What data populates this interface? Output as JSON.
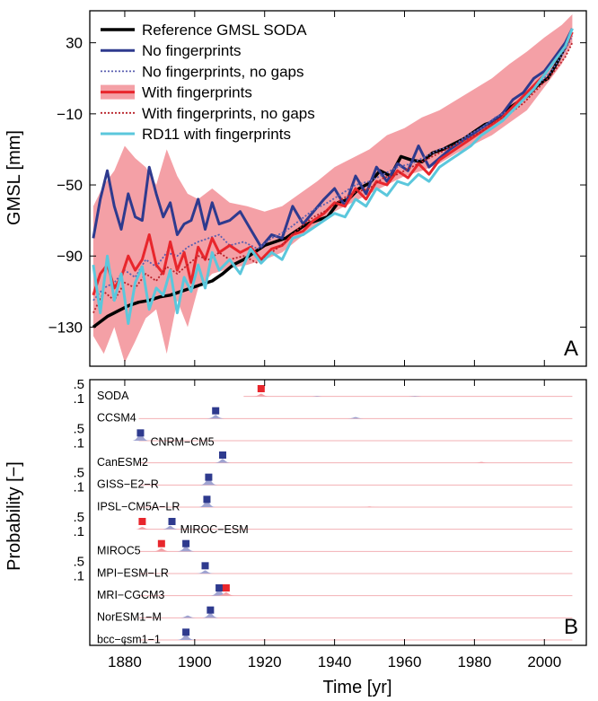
{
  "chart_data": [
    {
      "type": "line",
      "panel_label": "A",
      "xlabel": "",
      "ylabel": "GMSL [mm]",
      "xlim": [
        1870,
        2012
      ],
      "ylim": [
        -152,
        48
      ],
      "yticks": [
        30,
        -10,
        -50,
        -90,
        -130
      ],
      "ytick_labels": [
        "30",
        "−10",
        "−50",
        "−90",
        "−130"
      ],
      "legend_location": "top-left",
      "band": {
        "name": "With fingerprints",
        "color": "#f4a0a6",
        "x": [
          1871,
          1874,
          1877,
          1880,
          1883,
          1886,
          1889,
          1892,
          1895,
          1898,
          1901,
          1905,
          1910,
          1915,
          1920,
          1925,
          1930,
          1935,
          1940,
          1945,
          1950,
          1955,
          1960,
          1965,
          1970,
          1975,
          1980,
          1985,
          1990,
          1995,
          2000,
          2005,
          2008
        ],
        "lower": [
          -135,
          -145,
          -130,
          -150,
          -138,
          -125,
          -120,
          -145,
          -115,
          -130,
          -108,
          -100,
          -97,
          -95,
          -92,
          -88,
          -80,
          -72,
          -65,
          -60,
          -55,
          -50,
          -45,
          -42,
          -38,
          -32,
          -27,
          -22,
          -15,
          -8,
          5,
          18,
          30
        ],
        "upper": [
          -62,
          -50,
          -42,
          -28,
          -35,
          -40,
          -50,
          -30,
          -45,
          -55,
          -58,
          -52,
          -60,
          -62,
          -65,
          -62,
          -55,
          -48,
          -40,
          -35,
          -30,
          -22,
          -18,
          -12,
          -8,
          -2,
          4,
          10,
          18,
          25,
          33,
          40,
          46
        ]
      },
      "series": [
        {
          "name": "Reference GMSL SODA",
          "color": "#000000",
          "width": 3.5,
          "dash": "",
          "x": [
            1871,
            1873,
            1875,
            1878,
            1881,
            1884,
            1887,
            1890,
            1893,
            1896,
            1899,
            1902,
            1905,
            1908,
            1911,
            1914,
            1917,
            1920,
            1923,
            1926,
            1929,
            1932,
            1935,
            1938,
            1941,
            1944,
            1947,
            1950,
            1953,
            1956,
            1959,
            1962,
            1965,
            1968,
            1971,
            1974,
            1977,
            1980,
            1983,
            1986,
            1989,
            1992,
            1995,
            1998,
            2001,
            2004,
            2007
          ],
          "values": [
            -130,
            -127,
            -124,
            -121,
            -118,
            -116,
            -115,
            -113,
            -112,
            -110,
            -108,
            -106,
            -104,
            -100,
            -95,
            -92,
            -88,
            -84,
            -82,
            -80,
            -76,
            -72,
            -70,
            -68,
            -60,
            -58,
            -52,
            -49,
            -42,
            -45,
            -34,
            -36,
            -37,
            -32,
            -30,
            -27,
            -24,
            -20,
            -16,
            -14,
            -8,
            -4,
            0,
            6,
            10,
            20,
            32
          ]
        },
        {
          "name": "No fingerprints",
          "color": "#2e3a8e",
          "width": 3,
          "dash": "",
          "x": [
            1871,
            1873,
            1875,
            1877,
            1879,
            1881,
            1883,
            1885,
            1887,
            1889,
            1891,
            1893,
            1895,
            1897,
            1899,
            1901,
            1903,
            1905,
            1907,
            1910,
            1913,
            1916,
            1919,
            1922,
            1925,
            1928,
            1931,
            1934,
            1937,
            1940,
            1943,
            1946,
            1949,
            1952,
            1955,
            1958,
            1961,
            1964,
            1967,
            1970,
            1973,
            1976,
            1979,
            1982,
            1985,
            1988,
            1991,
            1994,
            1997,
            2000,
            2003,
            2006,
            2008
          ],
          "values": [
            -80,
            -58,
            -42,
            -62,
            -75,
            -55,
            -68,
            -70,
            -40,
            -55,
            -68,
            -60,
            -78,
            -72,
            -70,
            -58,
            -75,
            -60,
            -72,
            -70,
            -65,
            -75,
            -85,
            -78,
            -80,
            -62,
            -72,
            -65,
            -58,
            -52,
            -62,
            -45,
            -55,
            -40,
            -48,
            -38,
            -42,
            -28,
            -40,
            -35,
            -30,
            -26,
            -22,
            -18,
            -14,
            -10,
            -2,
            2,
            10,
            14,
            22,
            30,
            38
          ]
        },
        {
          "name": "No fingerprints, no gaps",
          "color": "#5a5fb0",
          "width": 1.8,
          "dash": "2,2",
          "x": [
            1871,
            1874,
            1877,
            1880,
            1883,
            1886,
            1889,
            1892,
            1895,
            1898,
            1901,
            1904,
            1907,
            1910,
            1914,
            1918,
            1922,
            1926,
            1930,
            1934,
            1938,
            1942,
            1946,
            1950,
            1954,
            1958,
            1962,
            1966,
            1970,
            1974,
            1978,
            1982,
            1986,
            1990,
            1994,
            1998,
            2002,
            2006,
            2008
          ],
          "values": [
            -115,
            -108,
            -105,
            -98,
            -102,
            -92,
            -96,
            -88,
            -90,
            -85,
            -82,
            -80,
            -78,
            -84,
            -82,
            -86,
            -80,
            -76,
            -70,
            -64,
            -60,
            -55,
            -50,
            -48,
            -44,
            -40,
            -38,
            -34,
            -30,
            -28,
            -22,
            -18,
            -12,
            -8,
            -2,
            6,
            14,
            26,
            34
          ]
        },
        {
          "name": "With fingerprints",
          "color": "#e8262c",
          "width": 3,
          "dash": "",
          "x": [
            1871,
            1873,
            1875,
            1877,
            1879,
            1881,
            1883,
            1885,
            1887,
            1889,
            1891,
            1893,
            1895,
            1897,
            1899,
            1901,
            1903,
            1905,
            1907,
            1910,
            1913,
            1916,
            1919,
            1922,
            1925,
            1928,
            1931,
            1934,
            1937,
            1940,
            1943,
            1946,
            1949,
            1952,
            1955,
            1958,
            1961,
            1964,
            1967,
            1970,
            1973,
            1976,
            1979,
            1982,
            1985,
            1988,
            1991,
            1994,
            1997,
            2000,
            2003,
            2006,
            2008
          ],
          "values": [
            -112,
            -100,
            -95,
            -108,
            -102,
            -90,
            -98,
            -92,
            -78,
            -95,
            -100,
            -82,
            -98,
            -88,
            -105,
            -85,
            -92,
            -80,
            -88,
            -84,
            -88,
            -85,
            -92,
            -86,
            -84,
            -78,
            -76,
            -70,
            -66,
            -60,
            -62,
            -52,
            -58,
            -48,
            -50,
            -42,
            -46,
            -38,
            -44,
            -36,
            -32,
            -28,
            -24,
            -20,
            -16,
            -12,
            -6,
            0,
            6,
            12,
            20,
            28,
            36
          ]
        },
        {
          "name": "With fingerprints, no gaps",
          "color": "#b8222a",
          "width": 1.8,
          "dash": "2,2",
          "x": [
            1871,
            1874,
            1877,
            1880,
            1883,
            1886,
            1889,
            1892,
            1895,
            1898,
            1901,
            1904,
            1907,
            1910,
            1914,
            1918,
            1922,
            1926,
            1930,
            1934,
            1938,
            1942,
            1946,
            1950,
            1954,
            1958,
            1962,
            1966,
            1970,
            1974,
            1978,
            1982,
            1986,
            1990,
            1994,
            1998,
            2002,
            2006,
            2008
          ],
          "values": [
            -122,
            -110,
            -115,
            -105,
            -108,
            -100,
            -104,
            -96,
            -100,
            -95,
            -90,
            -92,
            -88,
            -92,
            -90,
            -94,
            -88,
            -82,
            -74,
            -68,
            -64,
            -58,
            -54,
            -52,
            -46,
            -44,
            -40,
            -36,
            -32,
            -28,
            -24,
            -20,
            -14,
            -10,
            -4,
            4,
            12,
            22,
            30
          ]
        },
        {
          "name": "RD11 with  fingerprints",
          "color": "#5bc7dc",
          "width": 3,
          "dash": "",
          "x": [
            1871,
            1873,
            1875,
            1877,
            1879,
            1881,
            1883,
            1885,
            1887,
            1889,
            1891,
            1893,
            1895,
            1897,
            1899,
            1901,
            1903,
            1905,
            1907,
            1910,
            1913,
            1916,
            1919,
            1922,
            1925,
            1928,
            1931,
            1934,
            1937,
            1940,
            1943,
            1946,
            1949,
            1952,
            1955,
            1958,
            1961,
            1964,
            1967,
            1970,
            1973,
            1976,
            1979,
            1982,
            1985,
            1988,
            1991,
            1994,
            1997,
            2000,
            2003,
            2006,
            2008
          ],
          "values": [
            -95,
            -122,
            -90,
            -115,
            -100,
            -128,
            -105,
            -96,
            -120,
            -108,
            -112,
            -98,
            -122,
            -102,
            -110,
            -95,
            -108,
            -88,
            -98,
            -92,
            -100,
            -86,
            -94,
            -88,
            -92,
            -80,
            -78,
            -74,
            -70,
            -66,
            -68,
            -58,
            -62,
            -52,
            -56,
            -48,
            -50,
            -44,
            -48,
            -40,
            -36,
            -32,
            -28,
            -22,
            -18,
            -14,
            -8,
            -2,
            4,
            12,
            20,
            28,
            38
          ]
        }
      ]
    },
    {
      "type": "area",
      "panel_label": "B",
      "xlabel": "Time [yr]",
      "ylabel": "Probability [−]",
      "xlim": [
        1870,
        2012
      ],
      "xticks": [
        1880,
        1900,
        1920,
        1940,
        1960,
        1980,
        2000
      ],
      "xtick_labels": [
        "1880",
        "1900",
        "1920",
        "1940",
        "1960",
        "1980",
        "2000"
      ],
      "row_ticks": [
        ".5",
        ".1"
      ],
      "row_tick_rows": [
        0,
        2,
        4,
        6,
        8
      ],
      "rows": [
        {
          "name": "SODA",
          "peaks": [
            {
              "x": 1919,
              "h": 0.35,
              "color": "red"
            },
            {
              "x": 1935,
              "h": 0.08,
              "color": "blue"
            },
            {
              "x": 1963,
              "h": 0.07,
              "color": "blue"
            }
          ],
          "markers": [
            {
              "x": 1919,
              "color": "red"
            }
          ]
        },
        {
          "name": "CCSM4",
          "peaks": [
            {
              "x": 1906,
              "h": 0.45,
              "color": "blue"
            },
            {
              "x": 1946,
              "h": 0.2,
              "color": "blue"
            }
          ],
          "markers": [
            {
              "x": 1906,
              "color": "blue"
            }
          ]
        },
        {
          "name": "CNRM−CM5",
          "peaks": [
            {
              "x": 1884.5,
              "h": 1.0,
              "color": "blue"
            }
          ],
          "markers": [
            {
              "x": 1884.5,
              "color": "blue"
            }
          ]
        },
        {
          "name": "CanESM2",
          "peaks": [
            {
              "x": 1908,
              "h": 0.5,
              "color": "blue"
            },
            {
              "x": 1982,
              "h": 0.12,
              "color": "red"
            }
          ],
          "markers": [
            {
              "x": 1908,
              "color": "blue"
            }
          ]
        },
        {
          "name": "GISS−E2−R",
          "peaks": [
            {
              "x": 1904,
              "h": 0.95,
              "color": "blue"
            }
          ],
          "markers": [
            {
              "x": 1904,
              "color": "blue"
            }
          ]
        },
        {
          "name": "IPSL−CM5A−LR",
          "peaks": [
            {
              "x": 1903.5,
              "h": 0.9,
              "color": "blue"
            },
            {
              "x": 1950,
              "h": 0.08,
              "color": "red"
            }
          ],
          "markers": [
            {
              "x": 1903.5,
              "color": "blue"
            }
          ]
        },
        {
          "name": "MIROC−ESM",
          "peaks": [
            {
              "x": 1885,
              "h": 0.3,
              "color": "red"
            },
            {
              "x": 1893,
              "h": 0.45,
              "color": "blue"
            }
          ],
          "markers": [
            {
              "x": 1885,
              "color": "red"
            },
            {
              "x": 1893.5,
              "color": "blue"
            }
          ]
        },
        {
          "name": "MIROC5",
          "peaks": [
            {
              "x": 1890.5,
              "h": 0.4,
              "color": "red"
            },
            {
              "x": 1897.5,
              "h": 0.7,
              "color": "blue"
            }
          ],
          "markers": [
            {
              "x": 1890.5,
              "color": "red"
            },
            {
              "x": 1897.5,
              "color": "blue"
            }
          ]
        },
        {
          "name": "MPI−ESM−LR",
          "peaks": [
            {
              "x": 1903,
              "h": 0.4,
              "color": "blue"
            }
          ],
          "markers": [
            {
              "x": 1903,
              "color": "blue"
            }
          ]
        },
        {
          "name": "MRI−CGCM3",
          "peaks": [
            {
              "x": 1907,
              "h": 0.85,
              "color": "blue"
            },
            {
              "x": 1909,
              "h": 0.45,
              "color": "red"
            }
          ],
          "markers": [
            {
              "x": 1907,
              "color": "blue"
            },
            {
              "x": 1909,
              "color": "red"
            }
          ]
        },
        {
          "name": "NorESM1−M",
          "peaks": [
            {
              "x": 1904.5,
              "h": 0.65,
              "color": "blue"
            },
            {
              "x": 1898,
              "h": 0.3,
              "color": "blue"
            }
          ],
          "markers": [
            {
              "x": 1904.5,
              "color": "blue"
            }
          ]
        },
        {
          "name": "bcc−csm1−1",
          "peaks": [
            {
              "x": 1897.5,
              "h": 0.7,
              "color": "blue"
            }
          ],
          "markers": [
            {
              "x": 1897.5,
              "color": "blue"
            }
          ]
        }
      ],
      "colors": {
        "blue": "#2e3a8e",
        "blue_fill": "#9fa3d1",
        "red": "#e8262c",
        "red_fill": "#f3a1a6",
        "baseline": "#f3b0b4"
      }
    }
  ]
}
